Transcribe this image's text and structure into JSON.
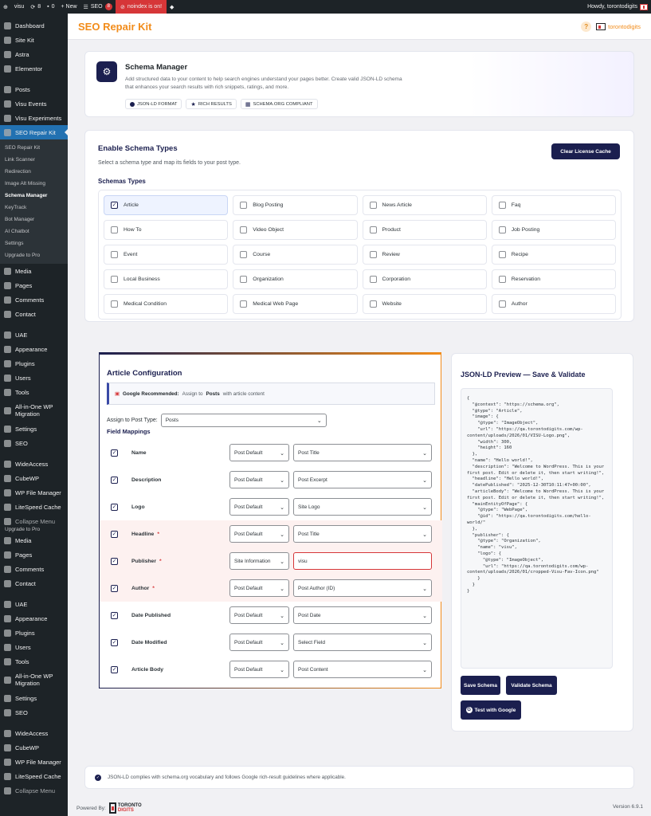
{
  "adminbar": {
    "site": "visu",
    "updates": "8",
    "comments": "0",
    "new": "+ New",
    "seo": "SEO",
    "seo_badge": "8",
    "noindex": "noindex is on!",
    "howdy": "Howdy, torontodigits"
  },
  "sidebar": {
    "items_top": [
      "Dashboard",
      "Site Kit",
      "Astra",
      "Elementor"
    ],
    "items_mid": [
      "Posts",
      "Visu Events",
      "Visu Experiments"
    ],
    "active": "SEO Repair Kit",
    "submenu": [
      "SEO Repair Kit",
      "Link Scanner",
      "Redirection",
      "Image Alt Missing",
      "Schema Manager",
      "KeyTrack",
      "Bot Manager",
      "AI Chatbot",
      "Settings",
      "Upgrade to Pro"
    ],
    "items_after": [
      "Media",
      "Pages",
      "Comments",
      "Contact"
    ],
    "items_uae": [
      "UAE",
      "Appearance",
      "Plugins",
      "Users",
      "Tools",
      "All-in-One WP Migration",
      "Settings",
      "SEO"
    ],
    "items_bottom": [
      "WideAccess",
      "CubeWP",
      "WP File Manager",
      "LiteSpeed Cache",
      "Collapse Menu"
    ],
    "ghost": "Upgrade to Pro",
    "items_after2": [
      "Media",
      "Pages",
      "Comments",
      "Contact"
    ],
    "items_uae2": [
      "UAE",
      "Appearance",
      "Plugins",
      "Users",
      "Tools",
      "All-in-One WP Migration",
      "Settings",
      "SEO"
    ],
    "items_bottom2": [
      "WideAccess",
      "CubeWP",
      "WP File Manager",
      "LiteSpeed Cache",
      "Collapse Menu"
    ]
  },
  "header": {
    "title": "SEO Repair Kit",
    "help": "?",
    "logo_text": "torontodigits"
  },
  "hero": {
    "icon": "gear-icon",
    "title": "Schema Manager",
    "description": "Add structured data to your content to help search engines understand your pages better. Create valid JSON-LD schema that enhances your search results with rich snippets, ratings, and more.",
    "chips": [
      "JSON-LD FORMAT",
      "RICH RESULTS",
      "SCHEMA.ORG COMPLIANT"
    ]
  },
  "enable": {
    "title": "Enable Schema Types",
    "subtitle": "Select a schema type and map its fields to your post type.",
    "clear_button": "Clear License Cache",
    "section_title": "Schemas Types",
    "types": [
      "Article",
      "Blog Posting",
      "News Article",
      "Faq",
      "How To",
      "Video Object",
      "Product",
      "Job Posting",
      "Event",
      "Course",
      "Review",
      "Recipe",
      "Local Business",
      "Organization",
      "Corporation",
      "Reservation",
      "Medical Condition",
      "Medical Web Page",
      "Website",
      "Author"
    ],
    "checked": [
      "Article"
    ]
  },
  "config": {
    "title": "Article Configuration",
    "recommend_label": "Google Recommended:",
    "recommend_pre": "Assign to",
    "recommend_bold": "Posts",
    "recommend_post": "with article content",
    "assign_label": "Assign to Post Type:",
    "assign_value": "Posts",
    "field_mappings": "Field Mappings",
    "fields": [
      {
        "label": "Name",
        "required": false,
        "source": "Post Default",
        "value": "Post Title"
      },
      {
        "label": "Description",
        "required": false,
        "source": "Post Default",
        "value": "Post Excerpt"
      },
      {
        "label": "Logo",
        "required": false,
        "source": "Post Default",
        "value": "Site Logo"
      },
      {
        "label": "Headline",
        "required": true,
        "source": "Post Default",
        "value": "Post Title"
      },
      {
        "label": "Publisher",
        "required": true,
        "source": "Site Information",
        "value": "visu",
        "input": true
      },
      {
        "label": "Author",
        "required": true,
        "source": "Post Default",
        "value": "Post Author (ID)"
      },
      {
        "label": "Date Published",
        "required": false,
        "source": "Post Default",
        "value": "Post Date"
      },
      {
        "label": "Date Modified",
        "required": false,
        "source": "Post Default",
        "value": "Select Field"
      },
      {
        "label": "Article Body",
        "required": false,
        "source": "Post Default",
        "value": "Post Content"
      }
    ]
  },
  "preview": {
    "title": "JSON-LD Preview — Save & Validate",
    "code": "{\n  \"@context\": \"https://schema.org\",\n  \"@type\": \"Article\",\n  \"image\": {\n    \"@type\": \"ImageObject\",\n    \"url\": \"https://qa.torontodigits.com/wp-content/uploads/2026/01/VISU-Logo.png\",\n    \"width\": 300,\n    \"height\": 160\n  },\n  \"name\": \"Hello world!\",\n  \"description\": \"Welcome to WordPress. This is your first post. Edit or delete it, then start writing!\",\n  \"headline\": \"Hello world!\",\n  \"datePublished\": \"2025-12-30T10:11:47+00:00\",\n  \"articleBody\": \"Welcome to WordPress. This is your first post. Edit or delete it, then start writing!\",\n  \"mainEntityOfPage\": {\n    \"@type\": \"WebPage\",\n    \"@id\": \"https://qa.torontodigits.com/hello-world/\"\n  },\n  \"publisher\": {\n    \"@type\": \"Organization\",\n    \"name\": \"visu\",\n    \"logo\": {\n      \"@type\": \"ImageObject\",\n      \"url\": \"https://qa.torontodigits.com/wp-content/uploads/2026/01/cropped-Visu-Fav-Icon.png\"\n    }\n  }\n}",
    "save": "Save Schema",
    "validate": "Validate Schema",
    "google": "Test with Google",
    "google_icon_letter": "G"
  },
  "notice": "JSON-LD complies with schema.org vocabulary and follows Google rich-result guidelines where applicable.",
  "footer": {
    "powered_by": "Powered By:",
    "logo_line1": "TORONTO",
    "logo_line2": "DIGITS",
    "version": "Version 6.9.1"
  },
  "colors": {
    "accent": "#f28c1a",
    "primary": "#1b1f4f",
    "wp_active": "#2271b1",
    "required_bg": "#fdf1f0",
    "danger": "#d63638"
  }
}
